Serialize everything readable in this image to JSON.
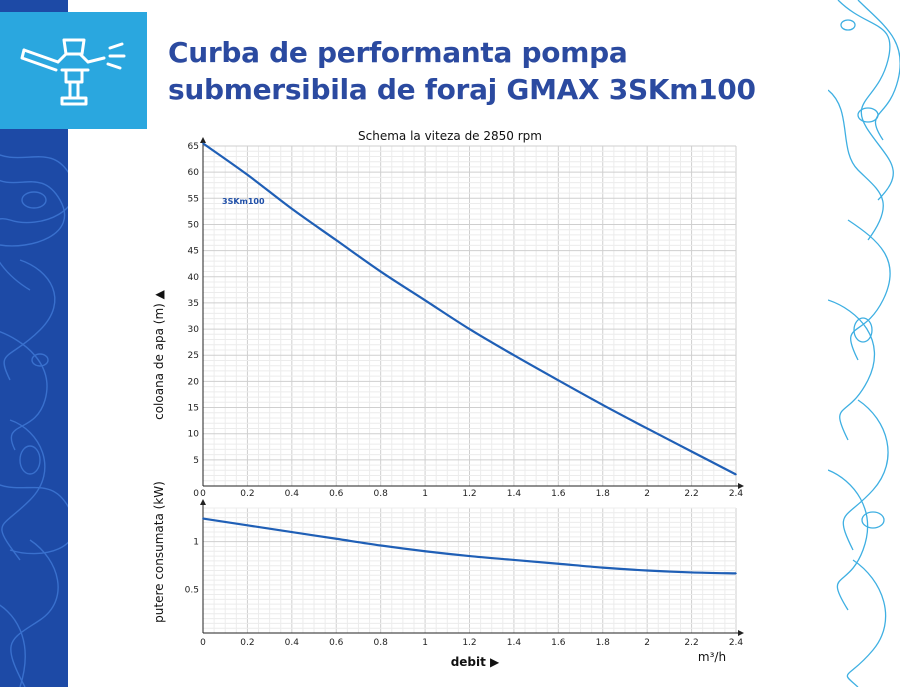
{
  "header": {
    "title_line1": "Curba de performanta pompa",
    "title_line2": "submersibila de foraj GMAX 3SKm100",
    "logo_icon": "sprinkler-icon"
  },
  "colors": {
    "brand_dark": "#1d4aa6",
    "brand_light": "#2aa7df",
    "title": "#2b4aa0",
    "curve": "#1f5fb6"
  },
  "chart_data": [
    {
      "type": "line",
      "title": "Schema la viteza de 2850 rpm",
      "xlabel": "",
      "ylabel": "coloana de apa (m) ▲",
      "xlim": [
        0,
        2.4
      ],
      "ylim": [
        0,
        65
      ],
      "x_ticks": [
        "0",
        "0.2",
        "0.4",
        "0.6",
        "0.8",
        "1",
        "1.2",
        "1.4",
        "1.6",
        "1.8",
        "2",
        "2.2",
        "2.4"
      ],
      "y_ticks": [
        "5",
        "10",
        "15",
        "20",
        "25",
        "30",
        "35",
        "40",
        "45",
        "50",
        "55",
        "60",
        "65"
      ],
      "grid": true,
      "series": [
        {
          "name": "3SKm100",
          "x": [
            0,
            0.2,
            0.4,
            0.6,
            0.8,
            1.0,
            1.2,
            1.4,
            1.6,
            1.8,
            2.0,
            2.2,
            2.4
          ],
          "y": [
            65.5,
            59.5,
            53,
            47,
            41,
            35.5,
            30,
            25,
            20.2,
            15.5,
            11,
            6.6,
            2.2
          ]
        }
      ]
    },
    {
      "type": "line",
      "title": "",
      "xlabel": "debit ▶",
      "xunit": "m³/h",
      "ylabel": "putere consumata (kW)",
      "xlim": [
        0,
        2.4
      ],
      "ylim": [
        0.05,
        1.35
      ],
      "x_ticks": [
        "0",
        "0.2",
        "0.4",
        "0.6",
        "0.8",
        "1",
        "1.2",
        "1.4",
        "1.6",
        "1.8",
        "2",
        "2.2",
        "2.4"
      ],
      "y_ticks": [
        "0.5",
        "1"
      ],
      "grid": true,
      "series": [
        {
          "x": [
            0,
            0.2,
            0.4,
            0.6,
            0.8,
            1.0,
            1.2,
            1.4,
            1.6,
            1.8,
            2.0,
            2.2,
            2.4
          ],
          "y": [
            1.24,
            1.17,
            1.1,
            1.03,
            0.96,
            0.9,
            0.85,
            0.81,
            0.77,
            0.73,
            0.7,
            0.68,
            0.67
          ]
        }
      ]
    }
  ]
}
